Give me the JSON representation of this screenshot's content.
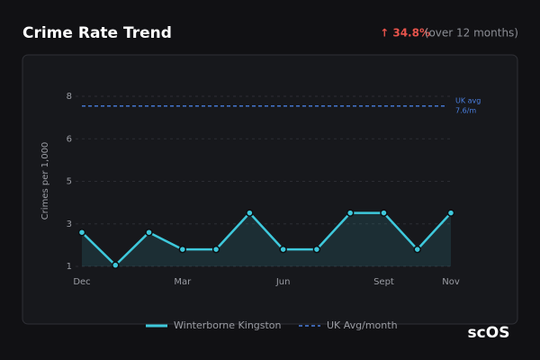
{
  "chart_data": {
    "type": "line",
    "title": "Crime Rate Trend",
    "change_label": "↑ 34.8%",
    "change_note": "(over 12 months)",
    "y_label": "Crimes per 1,000",
    "categories": [
      "Dec",
      null,
      null,
      "Mar",
      null,
      null,
      "Jun",
      null,
      null,
      "Sept",
      null,
      "Nov"
    ],
    "series": [
      {
        "name": "Winterborne Kingston",
        "color": "#3ec9dc",
        "values": [
          2.4,
          1.05,
          2.4,
          1.7,
          1.7,
          3.2,
          1.7,
          1.7,
          3.2,
          3.2,
          1.7,
          3.2
        ]
      }
    ],
    "reference": {
      "name": "UK Avg/month",
      "value": 7.6,
      "color": "#4a7fe0",
      "label": [
        "UK avg",
        "7.6/m"
      ]
    },
    "ylim": [
      1,
      8
    ],
    "yticks": [
      1,
      {
        "value": 2.75,
        "label": "3"
      },
      {
        "value": 4.5,
        "label": "5"
      },
      {
        "value": 6.25,
        "label": "6"
      },
      8
    ],
    "grid": true,
    "brand": "scOS"
  }
}
